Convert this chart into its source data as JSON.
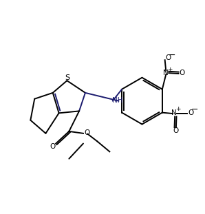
{
  "bg_color": "#ffffff",
  "bond_color": "#000000",
  "dark_bond_color": "#1a1a6e",
  "text_color": "#000000",
  "lw": 1.4,
  "figsize": [
    2.98,
    3.11
  ],
  "dpi": 100,
  "xlim": [
    0,
    10
  ],
  "ylim": [
    0,
    10.5
  ]
}
